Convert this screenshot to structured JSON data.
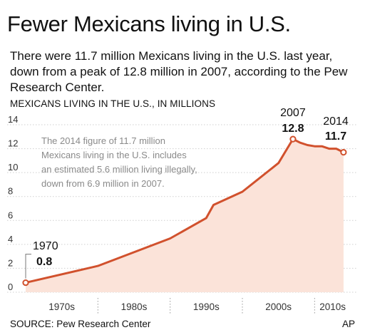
{
  "title": "Fewer Mexicans living in U.S.",
  "subtitle": "There were 11.7 million Mexicans living in the U.S. last year, down from a peak of 12.8 million in 2007, according to the Pew Research Center.",
  "source": "SOURCE: Pew Research Center",
  "credit": "AP",
  "colors": {
    "line": "#d1512d",
    "area": "#fbe3d9",
    "grid": "#cfcfcf"
  },
  "chart_data": {
    "type": "area",
    "title": "MEXICANS LIVING IN THE U.S., IN MILLIONS",
    "ylim": [
      0,
      14
    ],
    "yticks": [
      0,
      2,
      4,
      6,
      8,
      10,
      12,
      14
    ],
    "xlim": [
      1970,
      2015
    ],
    "categories": [
      "1970s",
      "1980s",
      "1990s",
      "2000s",
      "2010s"
    ],
    "series": [
      {
        "x": [
          1970,
          1980,
          1990,
          1995,
          1996,
          2000,
          2005,
          2006,
          2007,
          2008,
          2009,
          2010,
          2011,
          2012,
          2013,
          2014
        ],
        "values": [
          0.8,
          2.2,
          4.5,
          6.2,
          7.3,
          8.4,
          10.8,
          11.8,
          12.8,
          12.5,
          12.3,
          12.2,
          12.2,
          12.0,
          12.0,
          11.7
        ]
      }
    ],
    "annotations": [
      {
        "year": "1970",
        "value": "0.8"
      },
      {
        "year": "2007",
        "value": "12.8"
      },
      {
        "year": "2014",
        "value": "11.7"
      }
    ],
    "note": [
      "The 2014 figure of 11.7 million",
      "Mexicans living in the U.S. includes",
      "an estimated 5.6 million living illegally,",
      "down from 6.9 million in 2007."
    ]
  }
}
